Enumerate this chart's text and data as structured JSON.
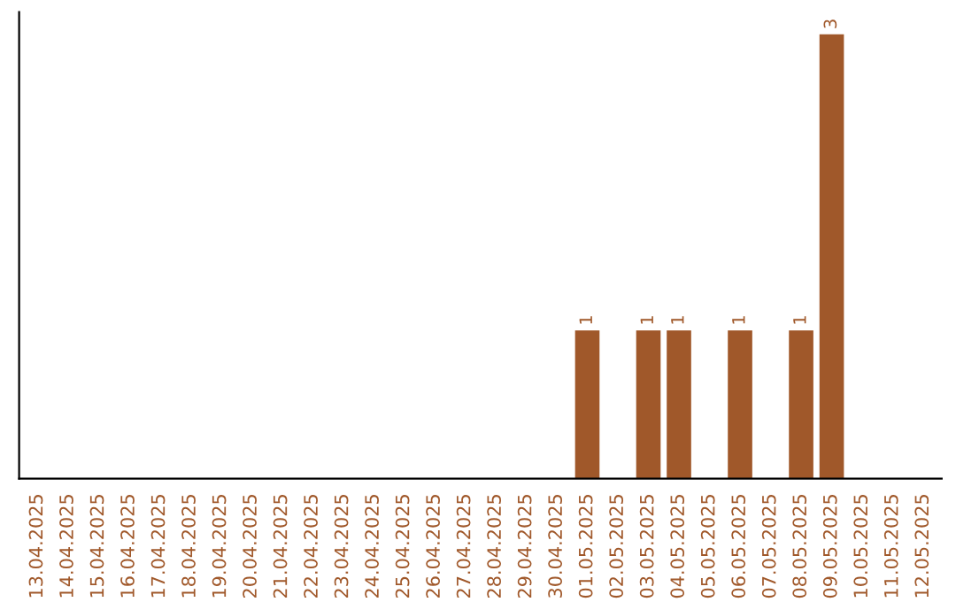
{
  "chart_data": {
    "type": "bar",
    "categories": [
      "13.04.2025",
      "14.04.2025",
      "15.04.2025",
      "16.04.2025",
      "17.04.2025",
      "18.04.2025",
      "19.04.2025",
      "20.04.2025",
      "21.04.2025",
      "22.04.2025",
      "23.04.2025",
      "24.04.2025",
      "25.04.2025",
      "26.04.2025",
      "27.04.2025",
      "28.04.2025",
      "29.04.2025",
      "30.04.2025",
      "01.05.2025",
      "02.05.2025",
      "03.05.2025",
      "04.05.2025",
      "05.05.2025",
      "06.05.2025",
      "07.05.2025",
      "08.05.2025",
      "09.05.2025",
      "10.05.2025",
      "11.05.2025",
      "12.05.2025"
    ],
    "values": [
      null,
      null,
      null,
      null,
      null,
      null,
      null,
      null,
      null,
      null,
      null,
      null,
      null,
      null,
      null,
      null,
      null,
      null,
      1,
      null,
      1,
      1,
      null,
      1,
      null,
      1,
      3,
      null,
      null,
      null
    ],
    "value_labels": [
      null,
      null,
      null,
      null,
      null,
      null,
      null,
      null,
      null,
      null,
      null,
      null,
      null,
      null,
      null,
      null,
      null,
      null,
      "1",
      null,
      "1",
      "1",
      null,
      "1",
      null,
      "1",
      "3",
      null,
      null,
      null
    ],
    "color": "#a0582a",
    "tick_labels": "x",
    "grid": false,
    "legend": false
  }
}
